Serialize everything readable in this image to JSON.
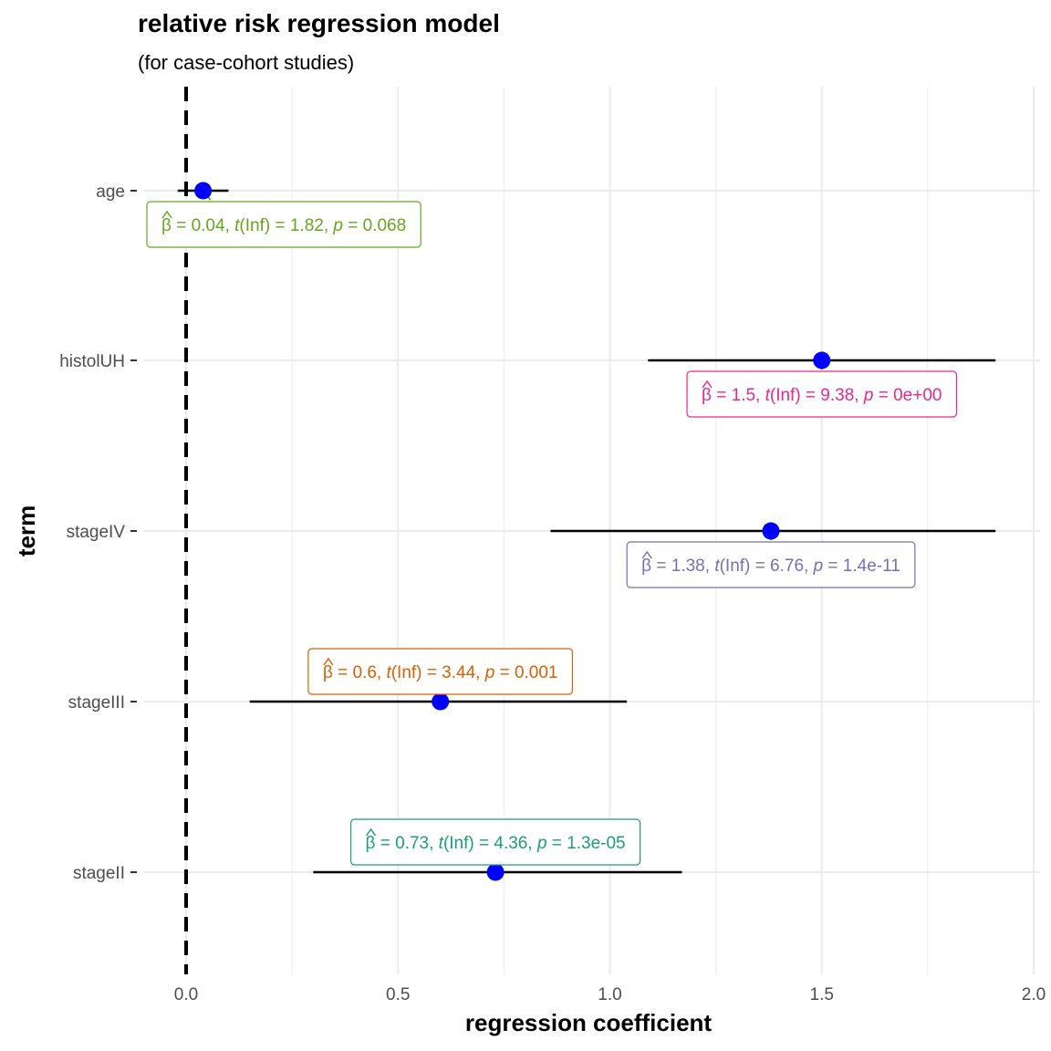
{
  "chart_data": {
    "type": "scatter",
    "title": "relative risk regression model",
    "subtitle": "(for case-cohort studies)",
    "xlabel": "regression coefficient",
    "ylabel": "term",
    "xlim": [
      -0.05,
      2.0
    ],
    "xticks": [
      0.0,
      0.5,
      1.0,
      1.5,
      2.0
    ],
    "xtick_labels": [
      "0.0",
      "0.5",
      "1.0",
      "1.5",
      "2.0"
    ],
    "reference_line": 0,
    "grid": true,
    "point_color": "#0000ff",
    "terms": [
      {
        "term": "age",
        "estimate": 0.04,
        "ci": [
          -0.02,
          0.1
        ],
        "stat": "1.82",
        "p": "0.068",
        "est_label": "0.04",
        "color": "#66a61e",
        "label_pos": "below"
      },
      {
        "term": "histolUH",
        "estimate": 1.5,
        "ci": [
          1.09,
          1.91
        ],
        "stat": "9.38",
        "p": "0e+00",
        "est_label": "1.5",
        "color": "#e7298a",
        "label_pos": "below"
      },
      {
        "term": "stageIV",
        "estimate": 1.38,
        "ci": [
          0.86,
          1.91
        ],
        "stat": "6.76",
        "p": "1.4e-11",
        "est_label": "1.38",
        "color": "#7570b3",
        "label_pos": "below"
      },
      {
        "term": "stageIII",
        "estimate": 0.6,
        "ci": [
          0.15,
          1.04
        ],
        "stat": "3.44",
        "p": "0.001",
        "est_label": "0.6",
        "color": "#d95f02",
        "label_pos": "above"
      },
      {
        "term": "stageII",
        "estimate": 0.73,
        "ci": [
          0.3,
          1.17
        ],
        "stat": "4.36",
        "p": "1.3e-05",
        "est_label": "0.73",
        "color": "#1b9e77",
        "label_pos": "above"
      }
    ]
  }
}
